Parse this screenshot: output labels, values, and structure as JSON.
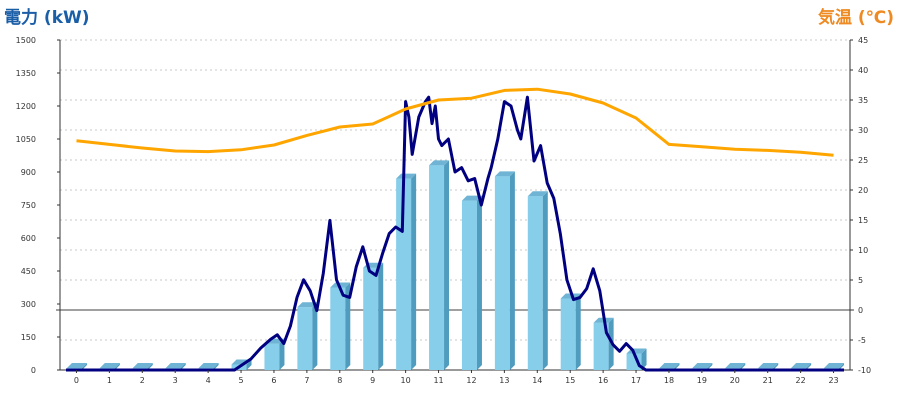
{
  "chart_data": {
    "type": "bar",
    "categories": [
      "0",
      "1",
      "2",
      "3",
      "4",
      "5",
      "6",
      "7",
      "8",
      "9",
      "10",
      "11",
      "12",
      "13",
      "14",
      "15",
      "16",
      "17",
      "18",
      "19",
      "20",
      "21",
      "22",
      "23"
    ],
    "left_axis": {
      "label": "電力 (kW)",
      "ylim": [
        0,
        1500
      ],
      "ticks": [
        "0",
        "150",
        "300",
        "450",
        "600",
        "750",
        "900",
        "1050",
        "1200",
        "1350",
        "1500"
      ]
    },
    "right_axis": {
      "label": "気温 (℃)",
      "ylim": [
        -10,
        45
      ],
      "ticks": [
        "-10",
        "-5",
        "0",
        "5",
        "10",
        "15",
        "20",
        "25",
        "30",
        "35",
        "40",
        "45"
      ]
    },
    "bars": {
      "values": [
        0,
        0,
        0,
        0,
        0,
        25,
        120,
        285,
        375,
        465,
        870,
        930,
        770,
        880,
        790,
        325,
        215,
        75,
        0,
        0,
        0,
        0,
        0,
        0
      ]
    },
    "power_line": {
      "x": [
        4.5,
        4.8,
        5,
        5.3,
        5.6,
        5.9,
        6.1,
        6.3,
        6.5,
        6.7,
        6.9,
        7.1,
        7.3,
        7.5,
        7.7,
        7.9,
        8.1,
        8.3,
        8.5,
        8.7,
        8.9,
        9.1,
        9.3,
        9.5,
        9.7,
        9.9,
        10,
        10.1,
        10.2,
        10.4,
        10.6,
        10.7,
        10.8,
        10.9,
        11,
        11.1,
        11.3,
        11.5,
        11.7,
        11.9,
        12.1,
        12.3,
        12.5,
        12.6,
        12.8,
        13,
        13.2,
        13.4,
        13.5,
        13.7,
        13.9,
        14.1,
        14.3,
        14.5,
        14.7,
        14.9,
        15.1,
        15.3,
        15.5,
        15.7,
        15.9,
        16.1,
        16.3,
        16.5,
        16.7,
        16.9,
        17.1,
        17.3
      ],
      "values": [
        0,
        0,
        20,
        50,
        100,
        140,
        160,
        120,
        200,
        330,
        410,
        360,
        270,
        440,
        680,
        410,
        340,
        330,
        470,
        560,
        450,
        430,
        530,
        620,
        650,
        630,
        1220,
        1150,
        980,
        1150,
        1220,
        1240,
        1120,
        1200,
        1050,
        1020,
        1050,
        900,
        920,
        860,
        870,
        750,
        870,
        920,
        1050,
        1220,
        1200,
        1090,
        1050,
        1240,
        950,
        1020,
        850,
        780,
        620,
        410,
        320,
        330,
        370,
        460,
        360,
        170,
        115,
        85,
        120,
        90,
        20,
        0
      ]
    },
    "temperature": {
      "x": [
        0,
        1,
        2,
        3,
        4,
        5,
        6,
        7,
        8,
        9,
        10,
        11,
        12,
        13,
        14,
        15,
        16,
        17,
        18,
        19,
        20,
        21,
        22,
        23
      ],
      "values": [
        28.2,
        27.6,
        27,
        26.5,
        26.4,
        26.7,
        27.5,
        29.1,
        30.5,
        31,
        33.5,
        35,
        35.3,
        36.6,
        36.8,
        36,
        34.5,
        32,
        27.6,
        27.2,
        26.8,
        26.6,
        26.3,
        25.8
      ]
    },
    "colors": {
      "bars": "#87ceeb",
      "power_line": "#000080",
      "temperature": "#ffa500",
      "left_title": "#1a5ea8",
      "right_title": "#ee8a21"
    },
    "grid": true
  }
}
